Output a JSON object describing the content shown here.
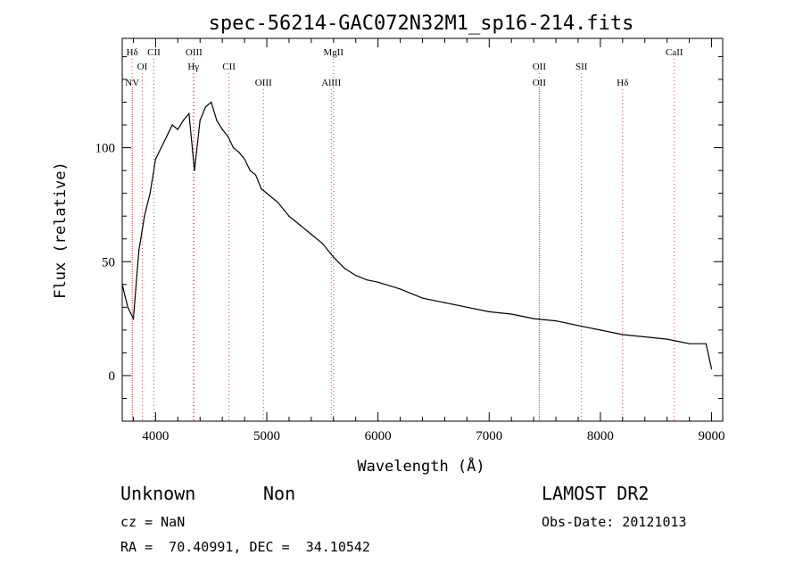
{
  "chart_data": {
    "type": "line",
    "title": "spec-56214-GAC072N32M1_sp16-214.fits",
    "xlabel": "Wavelength (Å)",
    "ylabel": "Flux (relative)",
    "xlim": [
      3700,
      9100
    ],
    "ylim": [
      -20,
      148
    ],
    "x_ticks": [
      4000,
      5000,
      6000,
      7000,
      8000,
      9000
    ],
    "y_ticks": [
      0,
      50,
      100
    ],
    "x_minor_step": 200,
    "y_minor_step": 10,
    "grid": false,
    "series": [
      {
        "x": [
          3700,
          3750,
          3800,
          3850,
          3900,
          3950,
          4000,
          4050,
          4100,
          4150,
          4200,
          4250,
          4300,
          4350,
          4400,
          4450,
          4500,
          4550,
          4600,
          4650,
          4700,
          4750,
          4800,
          4850,
          4900,
          4950,
          5000,
          5100,
          5200,
          5300,
          5400,
          5500,
          5600,
          5700,
          5800,
          5900,
          6000,
          6200,
          6400,
          6600,
          6800,
          7000,
          7200,
          7400,
          7600,
          7800,
          8000,
          8200,
          8400,
          8600,
          8800,
          8950,
          9000
        ],
        "y": [
          40,
          30,
          25,
          55,
          70,
          80,
          95,
          100,
          105,
          110,
          108,
          112,
          115,
          90,
          112,
          118,
          120,
          112,
          108,
          105,
          100,
          98,
          95,
          90,
          88,
          82,
          80,
          76,
          70,
          66,
          62,
          58,
          52,
          47,
          44,
          42,
          41,
          38,
          34,
          32,
          30,
          28,
          27,
          25,
          24,
          22,
          20,
          18,
          17,
          16,
          14,
          14,
          3
        ]
      }
    ],
    "emission_lines": [
      {
        "label": "NV",
        "x": 3790,
        "row": 3
      },
      {
        "label": "Hδ",
        "x": 3790,
        "row": 1
      },
      {
        "label": "OI",
        "x": 3880,
        "row": 2
      },
      {
        "label": "CII",
        "x": 3985,
        "row": 1
      },
      {
        "label": "OIII",
        "x": 4345,
        "row": 1
      },
      {
        "label": "Hγ",
        "x": 4340,
        "row": 2
      },
      {
        "label": "CII",
        "x": 4660,
        "row": 2
      },
      {
        "label": "OIII",
        "x": 4970,
        "row": 3
      },
      {
        "label": "MgII",
        "x": 5600,
        "row": 1
      },
      {
        "label": "AlIII",
        "x": 5580,
        "row": 3
      },
      {
        "label": "OII",
        "x": 7450,
        "row": 2
      },
      {
        "label": "OII",
        "x": 7450,
        "row": 3
      },
      {
        "label": "SII",
        "x": 7830,
        "row": 2
      },
      {
        "label": "Hδ",
        "x": 8200,
        "row": 3
      },
      {
        "label": "CaII",
        "x": 8665,
        "row": 1
      }
    ],
    "line_color": "#000000",
    "marker_color": "#d04040"
  },
  "info": {
    "classification": "Unknown",
    "subclass": "Non",
    "survey": "LAMOST DR2",
    "cz": "cz = NaN",
    "obs_date": "Obs-Date: 20121013",
    "coords": "RA =  70.40991, DEC =  34.10542"
  }
}
